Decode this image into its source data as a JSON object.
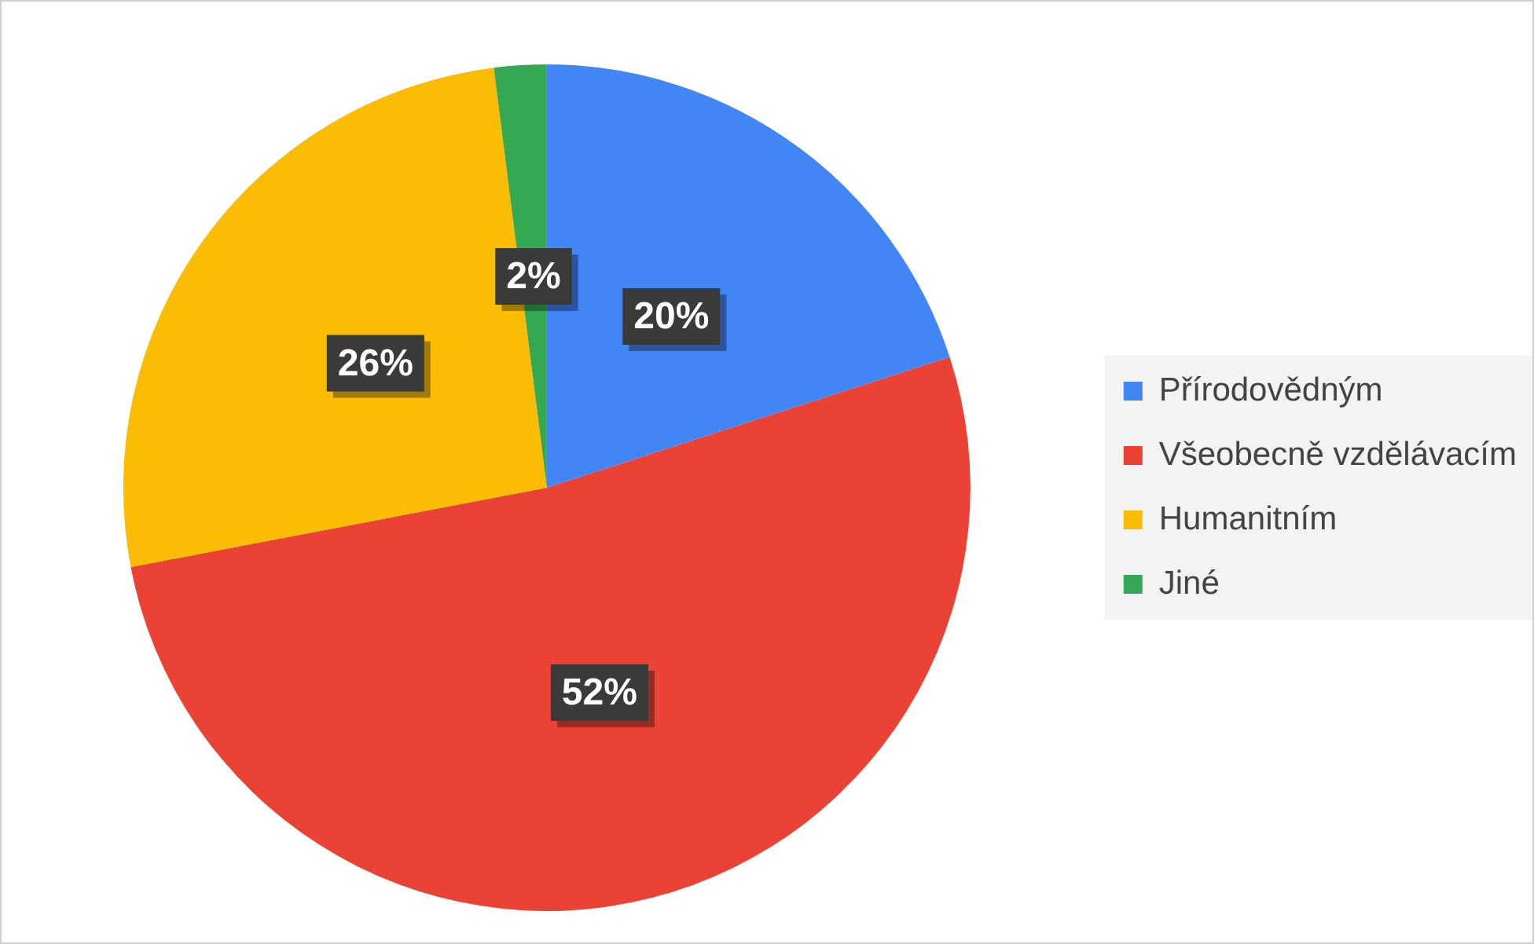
{
  "chart_data": {
    "type": "pie",
    "categories": [
      "Přírodovědným",
      "Všeobecně vzdělávacím",
      "Humanitním",
      "Jiné"
    ],
    "values": [
      20,
      52,
      26,
      2
    ],
    "colors": [
      "#4285f4",
      "#ea4335",
      "#fbbc04",
      "#34a853"
    ],
    "value_labels": [
      "20%",
      "52%",
      "26%",
      "2%"
    ],
    "legend": "right"
  }
}
